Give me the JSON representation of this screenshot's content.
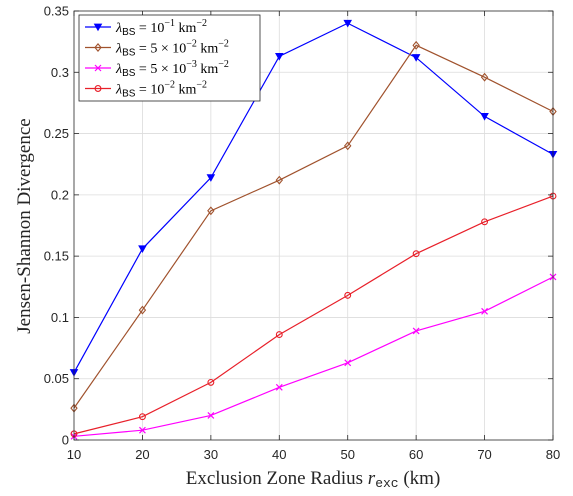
{
  "chart_data": {
    "type": "line",
    "title": "",
    "xlabel_main": "Exclusion Zone Radius ",
    "xlabel_var": "r",
    "xlabel_sub": "exc",
    "xlabel_unit": " (km)",
    "ylabel": "Jensen-Shannon Divergence",
    "x": [
      10,
      20,
      30,
      40,
      50,
      60,
      70,
      80
    ],
    "xlim": [
      10,
      80
    ],
    "ylim": [
      0,
      0.35
    ],
    "xticks": [
      "10",
      "20",
      "30",
      "40",
      "50",
      "60",
      "70",
      "80"
    ],
    "yticks": [
      "0",
      "0.05",
      "0.1",
      "0.15",
      "0.2",
      "0.25",
      "0.3",
      "0.35"
    ],
    "ytick_values": [
      0,
      0.05,
      0.1,
      0.15,
      0.2,
      0.25,
      0.3,
      0.35
    ],
    "grid": true,
    "legend_position": "top-left",
    "series": [
      {
        "legend_prefix": "λ",
        "legend_sub": "BS",
        "legend_mid": " = 10",
        "legend_sup": "−1",
        "legend_unit": " km",
        "legend_unit_sup": "−2",
        "color": "#0000ff",
        "marker": "triangle-down",
        "values": [
          0.055,
          0.156,
          0.214,
          0.313,
          0.34,
          0.312,
          0.264,
          0.233
        ]
      },
      {
        "legend_prefix": "λ",
        "legend_sub": "BS",
        "legend_mid": " = 5 × 10",
        "legend_sup": "−2",
        "legend_unit": " km",
        "legend_unit_sup": "−2",
        "color": "#a0522d",
        "marker": "diamond",
        "values": [
          0.026,
          0.106,
          0.187,
          0.212,
          0.24,
          0.322,
          0.296,
          0.268
        ]
      },
      {
        "legend_prefix": "λ",
        "legend_sub": "BS",
        "legend_mid": " = 5 × 10",
        "legend_sup": "−3",
        "legend_unit": " km",
        "legend_unit_sup": "−2",
        "color": "#ff00ff",
        "marker": "x",
        "values": [
          0.003,
          0.008,
          0.02,
          0.043,
          0.063,
          0.089,
          0.105,
          0.133
        ]
      },
      {
        "legend_prefix": "λ",
        "legend_sub": "BS",
        "legend_mid": " = 10",
        "legend_sup": "−2",
        "legend_unit": " km",
        "legend_unit_sup": "−2",
        "color": "#e8202a",
        "marker": "circle",
        "values": [
          0.005,
          0.019,
          0.047,
          0.086,
          0.118,
          0.152,
          0.178,
          0.199
        ]
      }
    ]
  }
}
